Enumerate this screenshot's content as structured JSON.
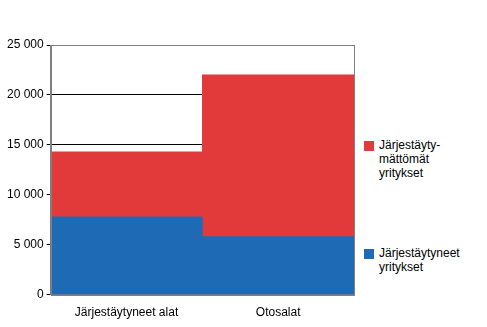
{
  "chart_data": {
    "type": "bar",
    "categories": [
      "Järjestäytyneet alat",
      "Otosalat"
    ],
    "series": [
      {
        "name": "Järjestäytyneet yritykset",
        "color": "#1f6ab5",
        "values": [
          7800,
          5800
        ]
      },
      {
        "name": "Järjestäyty-mättömät yritykset",
        "color": "#e23a3a",
        "values": [
          6500,
          16200
        ]
      }
    ],
    "stacked": true,
    "ylim": [
      0,
      25000
    ],
    "yticks": [
      0,
      {
        "value": 5000,
        "label": "5 000"
      },
      {
        "value": 10000,
        "label": "10 000"
      },
      {
        "value": 15000,
        "label": "15 000"
      },
      {
        "value": 20000,
        "label": "20 000"
      },
      {
        "value": 25000,
        "label": "25 000"
      }
    ],
    "grid": true,
    "legend": "right"
  }
}
